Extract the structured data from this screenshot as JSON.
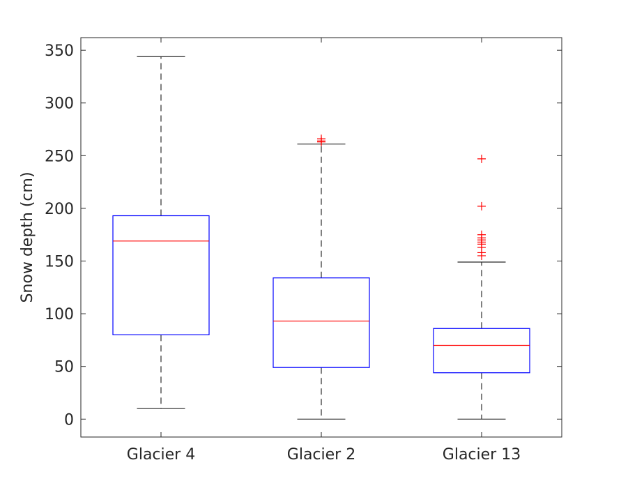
{
  "chart_data": {
    "type": "box",
    "title": "",
    "xlabel": "",
    "ylabel": "Snow depth (cm)",
    "ylim": [
      -17,
      362
    ],
    "yticks": [
      0,
      50,
      100,
      150,
      200,
      250,
      300,
      350
    ],
    "grid": false,
    "categories": [
      "Glacier 4",
      "Glacier 2",
      "Glacier 13"
    ],
    "boxes": [
      {
        "category": "Glacier 4",
        "whisker_low": 10,
        "q1": 80,
        "median": 169,
        "q3": 193,
        "whisker_high": 344,
        "outliers": []
      },
      {
        "category": "Glacier 2",
        "whisker_low": 0,
        "q1": 49,
        "median": 93,
        "q3": 134,
        "whisker_high": 261,
        "outliers": [
          263,
          264,
          266
        ]
      },
      {
        "category": "Glacier 13",
        "whisker_low": 0,
        "q1": 44,
        "median": 70,
        "q3": 86,
        "whisker_high": 149,
        "outliers": [
          155,
          158,
          163,
          166,
          168,
          170,
          172,
          175,
          202,
          247
        ]
      }
    ],
    "colors": {
      "box": "#0000ff",
      "median": "#ff0000",
      "outlier": "#ff0000",
      "whisker": "#555555",
      "axis": "#262626"
    }
  }
}
